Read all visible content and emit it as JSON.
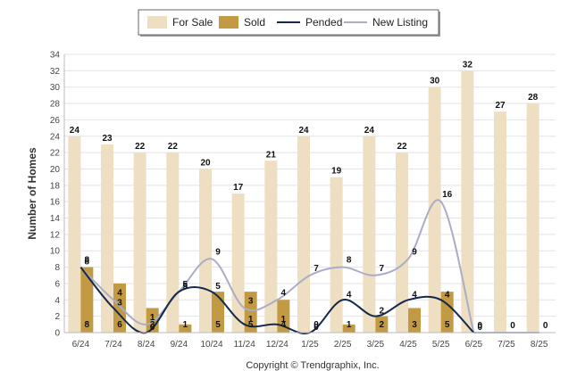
{
  "chart_data": {
    "type": "bar",
    "categories": [
      "6/24",
      "7/24",
      "8/24",
      "9/24",
      "10/24",
      "11/24",
      "12/24",
      "1/25",
      "2/25",
      "3/25",
      "4/25",
      "5/25",
      "6/25",
      "7/25",
      "8/25"
    ],
    "series": [
      {
        "name": "For Sale",
        "type": "bar",
        "color": "#EEDFC3",
        "values": [
          24,
          23,
          22,
          22,
          20,
          17,
          21,
          24,
          19,
          24,
          22,
          30,
          32,
          27,
          28
        ]
      },
      {
        "name": "Sold",
        "type": "bar",
        "color": "#C29A44",
        "values": [
          8,
          6,
          3,
          1,
          5,
          5,
          4,
          0,
          1,
          2,
          3,
          5,
          0,
          0,
          0
        ]
      },
      {
        "name": "Pended",
        "type": "line",
        "color": "#14284B",
        "values": [
          8,
          3,
          0,
          5,
          5,
          1,
          1,
          0,
          4,
          2,
          4,
          4,
          0,
          null,
          null
        ]
      },
      {
        "name": "New Listing",
        "type": "line",
        "color": "#A9ADC6",
        "values": [
          8,
          4,
          1,
          5,
          9,
          3,
          4,
          7,
          8,
          7,
          9,
          16,
          0,
          0,
          0
        ]
      }
    ],
    "ylabel": "Number of Homes",
    "xlabel": "",
    "ylim": [
      0,
      34
    ],
    "yticks": [
      0,
      2,
      4,
      6,
      8,
      10,
      12,
      14,
      16,
      18,
      20,
      22,
      24,
      26,
      28,
      30,
      32,
      34
    ],
    "grid": true,
    "legend_position": "top-center"
  },
  "footer": {
    "copyright": "Copyright © Trendgraphix, Inc."
  }
}
